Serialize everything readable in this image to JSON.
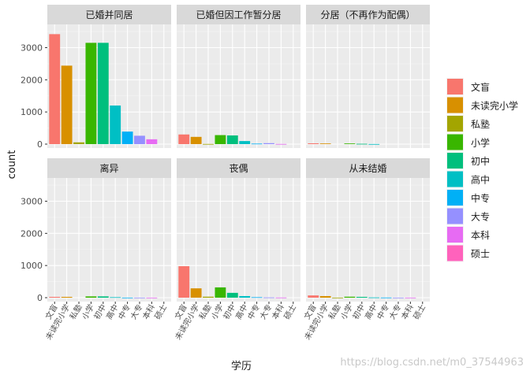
{
  "chart_data": {
    "type": "bar",
    "xlabel": "学历",
    "ylabel": "count",
    "ylim": [
      0,
      3600
    ],
    "yticks": [
      0,
      1000,
      2000,
      3000
    ],
    "categories": [
      "文盲",
      "未读完小学",
      "私塾",
      "小学",
      "初中",
      "高中",
      "中专",
      "大专",
      "本科",
      "硕士"
    ],
    "colors": [
      "#F8766D",
      "#D89000",
      "#A3A500",
      "#39B600",
      "#00BF7D",
      "#00BFC4",
      "#00B0F6",
      "#9590FF",
      "#E76BF3",
      "#FF62BC"
    ],
    "legend_position": "right",
    "grid": true,
    "panels": [
      {
        "title": "已婚并同居",
        "values": [
          3420,
          2440,
          55,
          3150,
          3150,
          1200,
          390,
          260,
          150,
          0
        ]
      },
      {
        "title": "已婚但因工作暂分居",
        "values": [
          300,
          225,
          5,
          280,
          270,
          95,
          15,
          30,
          5,
          0
        ]
      },
      {
        "title": "分居（不再作为配偶）",
        "values": [
          25,
          20,
          0,
          20,
          10,
          3,
          0,
          0,
          0,
          0
        ]
      },
      {
        "title": "离异",
        "values": [
          25,
          25,
          0,
          40,
          40,
          15,
          3,
          3,
          2,
          0
        ]
      },
      {
        "title": "丧偶",
        "values": [
          980,
          290,
          30,
          320,
          150,
          50,
          15,
          8,
          5,
          0
        ]
      },
      {
        "title": "从未结婚",
        "values": [
          70,
          50,
          3,
          30,
          25,
          8,
          5,
          3,
          3,
          0
        ]
      }
    ]
  },
  "watermark": "https://blog.csdn.net/m0_37544963"
}
